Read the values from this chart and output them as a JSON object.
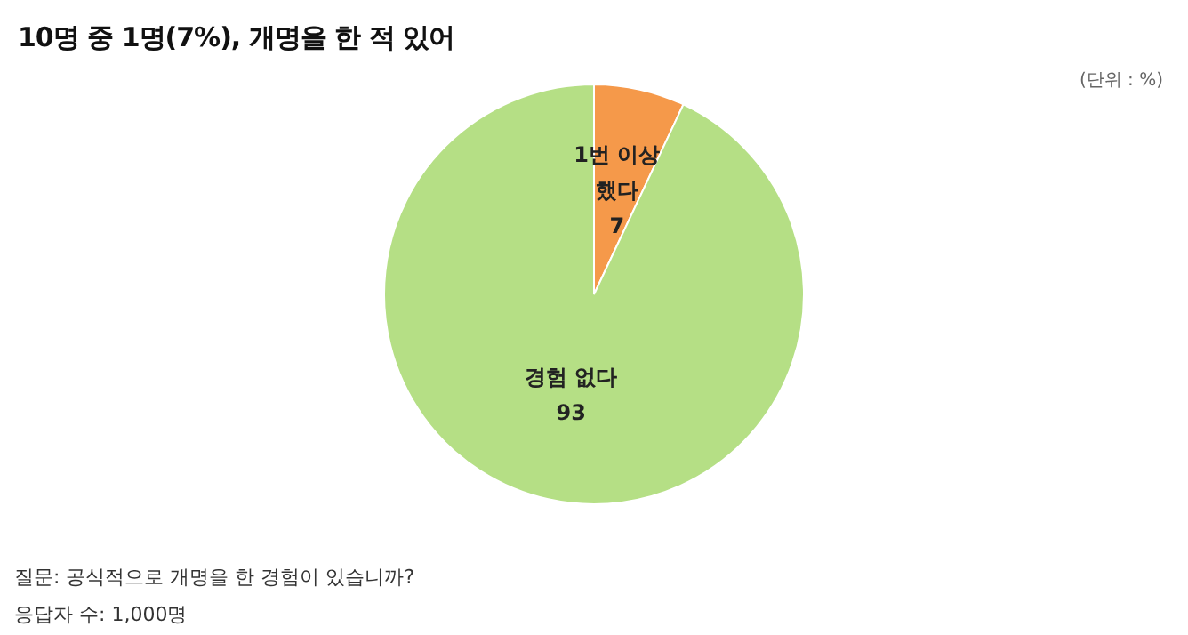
{
  "chart_data": {
    "type": "pie",
    "title": "10명 중 1명(7%), 개명을 한 적 있어",
    "subtitle": "(단위 : %)",
    "categories": [
      "1번 이상 했다",
      "경험 없다"
    ],
    "values": [
      7,
      93
    ],
    "colors": [
      "#f5994a",
      "#b5df85"
    ],
    "data_labels": true,
    "legend": false,
    "annotations": [
      "질문:  공식적으로 개명을 한 경험이 있습니까?",
      "응답자 수: 1,000명"
    ]
  }
}
